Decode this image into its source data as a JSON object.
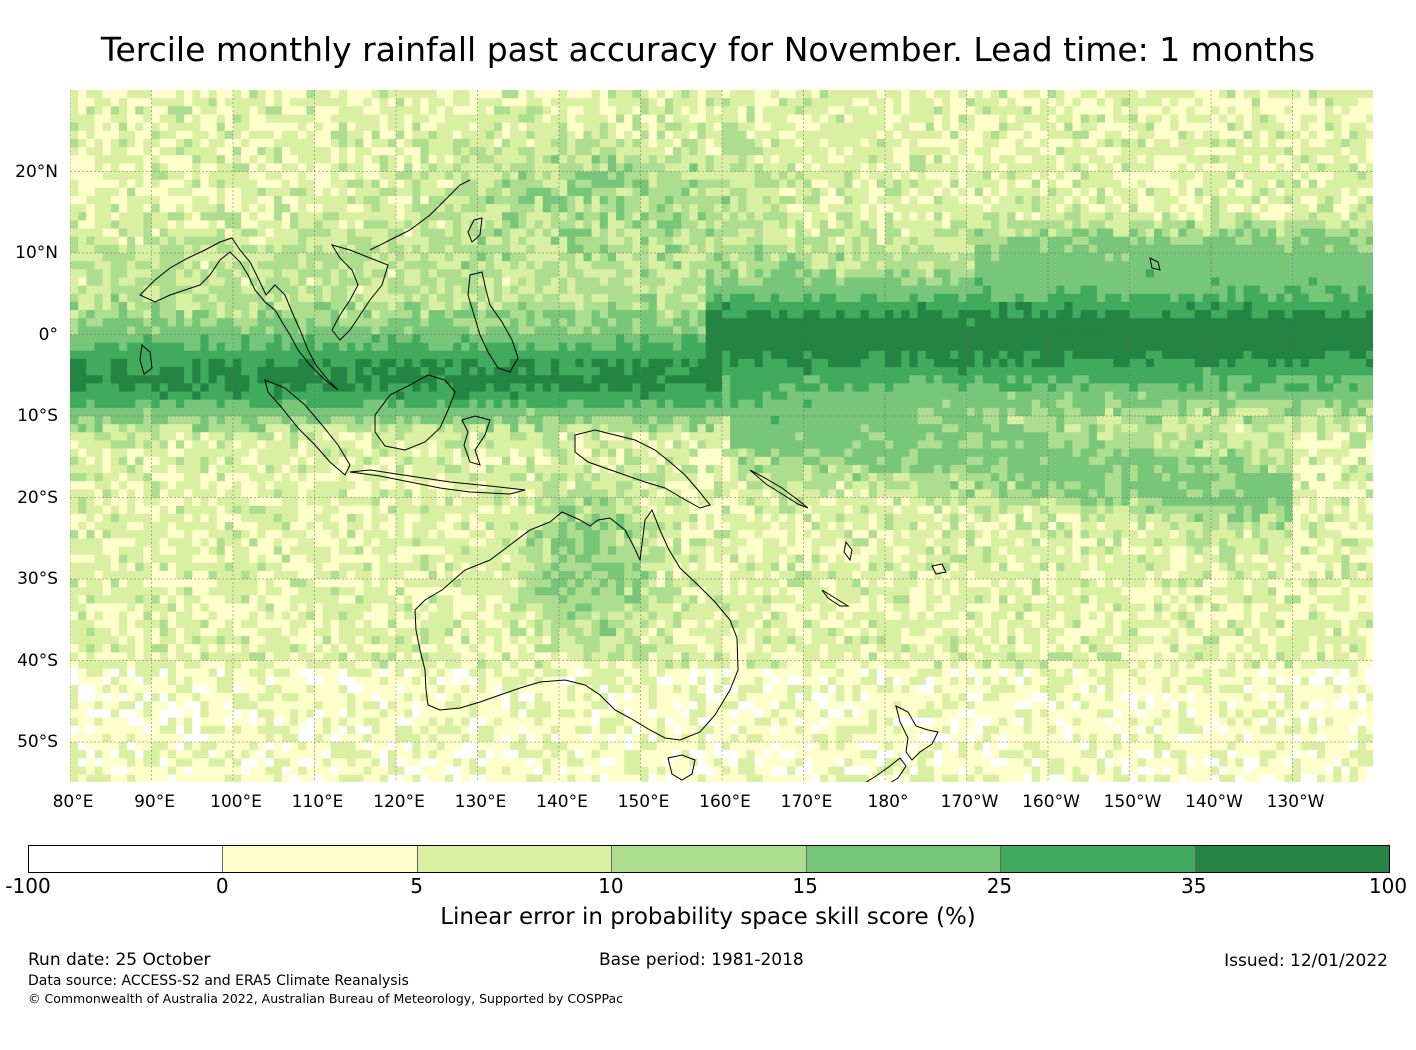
{
  "title": "Tercile monthly rainfall past accuracy for November. Lead time: 1 months",
  "map": {
    "lon_labels": [
      "80°E",
      "90°E",
      "100°E",
      "110°E",
      "120°E",
      "130°E",
      "140°E",
      "150°E",
      "160°E",
      "170°E",
      "180°",
      "170°W",
      "160°W",
      "150°W",
      "140°W",
      "130°W"
    ],
    "lat_labels": [
      "20°N",
      "10°N",
      "0°",
      "10°S",
      "20°S",
      "30°S",
      "40°S",
      "50°S"
    ],
    "lon_range": [
      80,
      240
    ],
    "lat_range": [
      -55,
      30
    ]
  },
  "colorbar": {
    "ticks": [
      "-100",
      "0",
      "5",
      "10",
      "15",
      "25",
      "35",
      "100"
    ],
    "colors": [
      "#ffffff",
      "#ffffcc",
      "#d9f0a3",
      "#addd8e",
      "#78c679",
      "#41ab5d",
      "#238443"
    ],
    "label": "Linear error in probability space skill score (%)"
  },
  "footer": {
    "run_date": "Run date: 25 October",
    "base_period": "Base period: 1981-2018",
    "issued": "Issued: 12/01/2022",
    "data_source": "Data source: ACCESS-S2 and ERA5 Climate Reanalysis",
    "copyright": "© Commonwealth of Australia 2022, Australian Bureau of Meteorology, Supported by COSPPac"
  }
}
